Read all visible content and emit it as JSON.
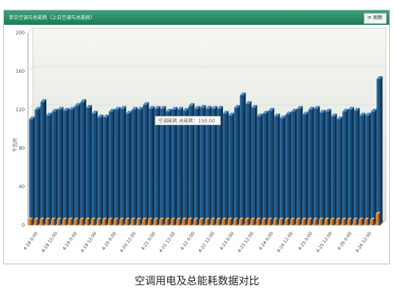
{
  "panel": {
    "title": "单日空调与总能耗（上日空调与总能耗）",
    "refresh_label": "刷新",
    "refresh_icon": "refresh-icon"
  },
  "caption": "空调用电及总能耗数据对比",
  "colors": {
    "series1": "#1f5b8f",
    "series2": "#e07a1c",
    "titlebar": "#2a8a63"
  },
  "chart_data": {
    "type": "bar",
    "ylabel": "千瓦时",
    "ylim": [
      0,
      200
    ],
    "yticks": [
      0,
      40,
      80,
      120,
      160,
      200
    ],
    "xtick_labels": [
      "4-18 0:00",
      "4-18 12:00",
      "4-19 0:00",
      "4-19 12:00",
      "4-20 0:00",
      "4-20 12:00",
      "4-21 0:00",
      "4-21 12:00",
      "4-22 0:00",
      "4-22 12:00",
      "4-23 0:00",
      "4-23 12:00",
      "4-24 0:00",
      "4-24 12:00",
      "4-25 0:00",
      "4-25 12:00",
      "4-26 0:00",
      "4-26 12:00"
    ],
    "tooltip": "空调能耗 总能耗：150.00",
    "series": [
      {
        "values": [
          110,
          120,
          128,
          114,
          118,
          120,
          119,
          120,
          124,
          128,
          122,
          116,
          112,
          112,
          118,
          120,
          121,
          116,
          120,
          120,
          125,
          121,
          121,
          121,
          118,
          120,
          120,
          119,
          124,
          121,
          122,
          121,
          121,
          121,
          116,
          114,
          122,
          135,
          126,
          122,
          113,
          116,
          119,
          113,
          111,
          115,
          118,
          121,
          115,
          120,
          121,
          117,
          118,
          113,
          110,
          118,
          120,
          119,
          114,
          114,
          118,
          152
        ]
      },
      {
        "values": [
          6,
          6,
          6,
          6,
          6,
          6,
          6,
          6,
          6,
          6,
          6,
          6,
          6,
          6,
          6,
          6,
          6,
          6,
          6,
          6,
          6,
          6,
          6,
          6,
          6,
          6,
          6,
          6,
          6,
          6,
          6,
          6,
          6,
          6,
          6,
          6,
          6,
          6,
          6,
          6,
          6,
          6,
          6,
          6,
          6,
          6,
          6,
          6,
          6,
          6,
          6,
          6,
          6,
          6,
          6,
          6,
          6,
          6,
          6,
          6,
          6,
          12
        ]
      }
    ]
  }
}
